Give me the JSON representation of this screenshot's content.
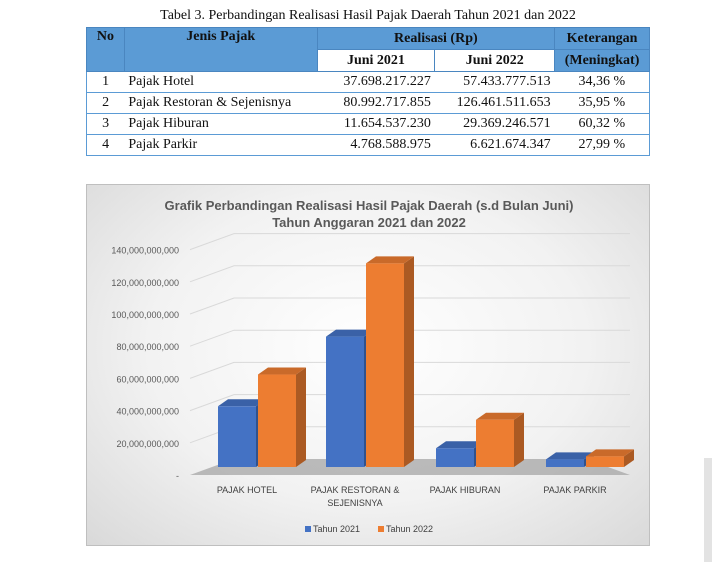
{
  "table": {
    "caption": "Tabel 3. Perbandingan Realisasi Hasil Pajak Daerah Tahun 2021 dan 2022",
    "headers": {
      "no": "No",
      "jenis": "Jenis Pajak",
      "realisasi": "Realisasi (Rp)",
      "juni2021": "Juni 2021",
      "juni2022": "Juni 2022",
      "keterangan_1": "Keterangan",
      "keterangan_2": "(Meningkat)"
    },
    "rows": [
      {
        "no": "1",
        "jenis": "Pajak Hotel",
        "v2021": "37.698.217.227",
        "v2022": "57.433.777.513",
        "ket": "34,36 %"
      },
      {
        "no": "2",
        "jenis": "Pajak Restoran & Sejenisnya",
        "v2021": "80.992.717.855",
        "v2022": "126.461.511.653",
        "ket": "35,95 %"
      },
      {
        "no": "3",
        "jenis": "Pajak Hiburan",
        "v2021": "11.654.537.230",
        "v2022": "29.369.246.571",
        "ket": "60,32 %"
      },
      {
        "no": "4",
        "jenis": "Pajak Parkir",
        "v2021": "4.768.588.975",
        "v2022": "6.621.674.347",
        "ket": "27,99 %"
      }
    ]
  },
  "chart_data": {
    "type": "bar",
    "title": "Grafik Perbandingan Realisasi Hasil Pajak Daerah (s.d Bulan Juni)",
    "subtitle": "Tahun Anggaran 2021 dan 2022",
    "categories": [
      [
        "PAJAK HOTEL"
      ],
      [
        "PAJAK RESTORAN &",
        "SEJENISNYA"
      ],
      [
        "PAJAK HIBURAN"
      ],
      [
        "PAJAK PARKIR"
      ]
    ],
    "series": [
      {
        "name": "Tahun 2021",
        "color": "#4472c4",
        "values": [
          37698217227,
          80992717855,
          11654537230,
          4768588975
        ]
      },
      {
        "name": "Tahun 2022",
        "color": "#ed7d31",
        "values": [
          57433777513,
          126461511653,
          29369246571,
          6621674347
        ]
      }
    ],
    "ylim": [
      0,
      140000000000
    ],
    "ytick_labels": [
      "-",
      "20,000,000,000",
      "40,000,000,000",
      "60,000,000,000",
      "80,000,000,000",
      "100,000,000,000",
      "120,000,000,000",
      "140,000,000,000"
    ],
    "legend": "bottom",
    "grid": true,
    "style": "3d"
  }
}
